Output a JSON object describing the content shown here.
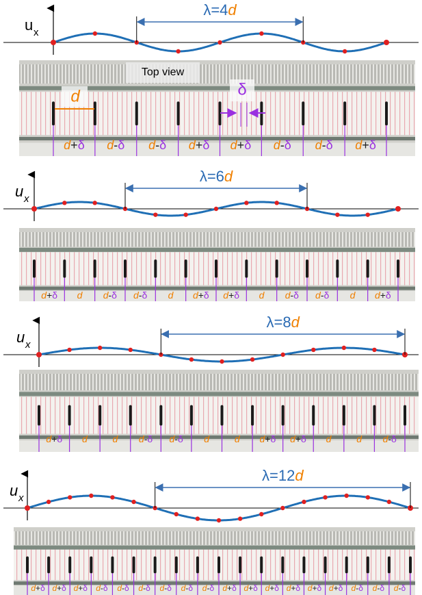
{
  "panels": [
    {
      "u": "u",
      "x": "x",
      "lambda": "λ=4",
      "lambda_unit": "d",
      "spacings": [
        "d+δ",
        "d-δ",
        "d-δ",
        "d+δ",
        "d+δ",
        "d-δ",
        "d-δ",
        "d+δ"
      ]
    },
    {
      "u": "u",
      "x": "x",
      "lambda": "λ=6",
      "lambda_unit": "d",
      "spacings": [
        "d+δ",
        "d",
        "d-δ",
        "d-δ",
        "d",
        "d+δ",
        "d+δ",
        "d",
        "d-δ",
        "d-δ",
        "d",
        "d+δ"
      ]
    },
    {
      "u": "u",
      "x": "x",
      "lambda": "λ=8",
      "lambda_unit": "d",
      "spacings": [
        "d+δ",
        "d",
        "d",
        "d-δ",
        "d-δ",
        "d",
        "d",
        "d+δ",
        "d+δ",
        "d",
        "d",
        "d-δ"
      ]
    },
    {
      "u": "u",
      "x": "x",
      "lambda": "λ=12",
      "lambda_unit": "d",
      "spacings": [
        "d+δ",
        "d+δ",
        "d+δ",
        "d-δ",
        "d-δ",
        "d-δ",
        "d-δ",
        "d-δ",
        "d-δ",
        "d+δ",
        "d+δ",
        "d+δ",
        "d+δ",
        "d+δ",
        "d+δ",
        "d-δ",
        "d-δ",
        "d-δ"
      ]
    }
  ],
  "top_view": "Top view",
  "d_label": "d",
  "delta_label": "δ"
}
